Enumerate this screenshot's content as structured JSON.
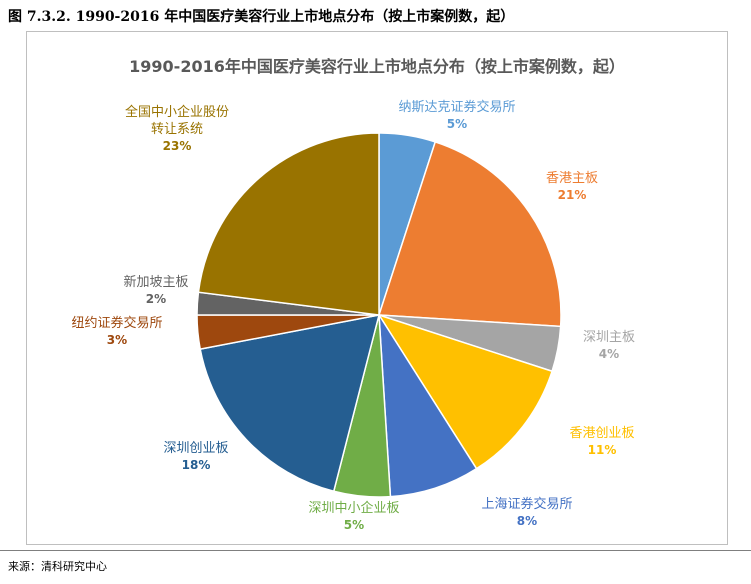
{
  "figure_caption": "图 7.3.2. 1990-2016 年中国医疗美容行业上市地点分布（按上市案例数，起）",
  "source": "来源：清科研究中心",
  "chart_data": {
    "type": "pie",
    "title": "1990-2016年中国医疗美容行业上市地点分布（按上市案例数，起）",
    "start_angle_deg": 0,
    "direction": "clockwise",
    "slices": [
      {
        "label": "纳斯达克证券交易所",
        "value": 5,
        "pct_label": "5%",
        "color": "#5B9BD5",
        "label_color": "#5B9BD5"
      },
      {
        "label": "香港主板",
        "value": 21,
        "pct_label": "21%",
        "color": "#ED7D31",
        "label_color": "#ED7D31"
      },
      {
        "label": "深圳主板",
        "value": 4,
        "pct_label": "4%",
        "color": "#A5A5A5",
        "label_color": "#A5A5A5"
      },
      {
        "label": "香港创业板",
        "value": 11,
        "pct_label": "11%",
        "color": "#FFC000",
        "label_color": "#FFC000"
      },
      {
        "label": "上海证券交易所",
        "value": 8,
        "pct_label": "8%",
        "color": "#4472C4",
        "label_color": "#4472C4"
      },
      {
        "label": "深圳中小企业板",
        "value": 5,
        "pct_label": "5%",
        "color": "#70AD47",
        "label_color": "#70AD47"
      },
      {
        "label": "深圳创业板",
        "value": 18,
        "pct_label": "18%",
        "color": "#255E91",
        "label_color": "#255E91"
      },
      {
        "label": "纽约证券交易所",
        "value": 3,
        "pct_label": "3%",
        "color": "#9E480E",
        "label_color": "#9E480E"
      },
      {
        "label": "新加坡主板",
        "value": 2,
        "pct_label": "2%",
        "color": "#636363",
        "label_color": "#636363"
      },
      {
        "label": "全国中小企业股份转让系统",
        "label_lines": [
          "全国中小企业股份",
          "转让系统"
        ],
        "value": 23,
        "pct_label": "23%",
        "color": "#997300",
        "label_color": "#997300"
      }
    ]
  }
}
